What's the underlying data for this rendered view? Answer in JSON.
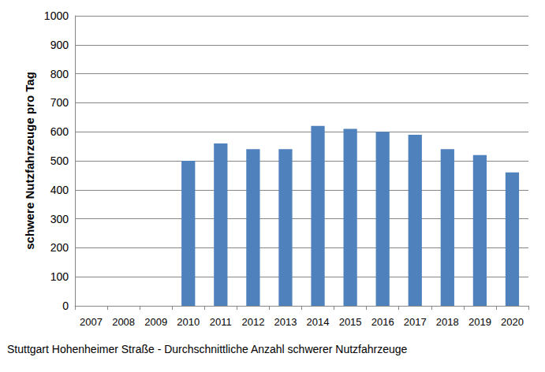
{
  "chart_data": {
    "type": "bar",
    "xlabel": "Stuttgart Hohenheimer Straße - Durchschnittliche Anzahl schwerer Nutzfahrzeuge",
    "ylabel": "schwere Nutzfahrzeuge pro Tag",
    "categories": [
      "2007",
      "2008",
      "2009",
      "2010",
      "2011",
      "2012",
      "2013",
      "2014",
      "2015",
      "2016",
      "2017",
      "2018",
      "2019",
      "2020"
    ],
    "values": [
      null,
      null,
      null,
      500,
      560,
      540,
      540,
      620,
      610,
      600,
      590,
      540,
      520,
      460
    ],
    "color": "#4f81bd",
    "ylim": [
      0,
      1000
    ],
    "yticks": [
      0,
      100,
      200,
      300,
      400,
      500,
      600,
      700,
      800,
      900,
      1000
    ],
    "grid": true
  }
}
